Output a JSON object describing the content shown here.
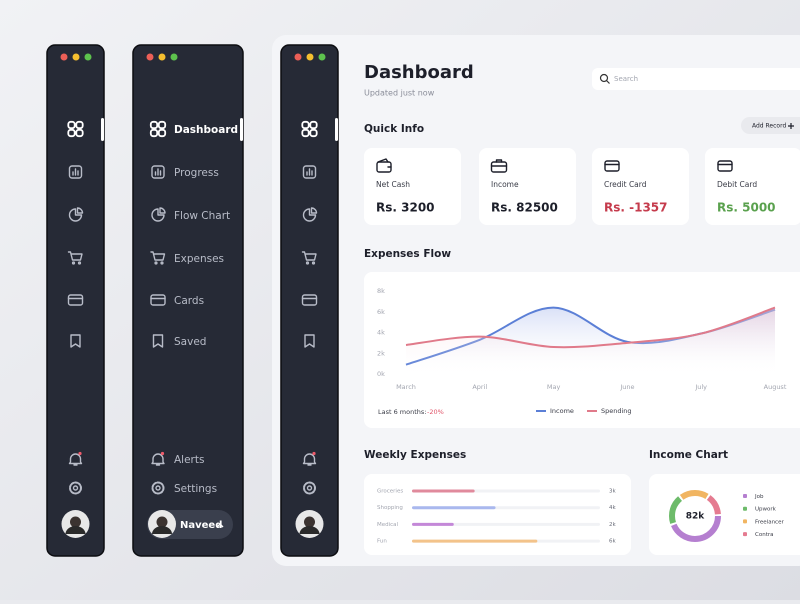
{
  "nav": {
    "items": [
      "Dashboard",
      "Progress",
      "Flow Chart",
      "Expenses",
      "Cards",
      "Saved"
    ],
    "bottom": [
      "Alerts",
      "Settings"
    ],
    "user": "Naveed"
  },
  "header": {
    "title": "Dashboard",
    "subtitle": "Updated just now",
    "search": "Search"
  },
  "quick_info": {
    "title": "Quick Info",
    "button": "Add Record",
    "cards": [
      {
        "label": "Net Cash",
        "value": "Rs. 3200"
      },
      {
        "label": "Income",
        "value": "Rs. 82500"
      },
      {
        "label": "Credit Card",
        "value": "Rs. -1357"
      },
      {
        "label": "Debit Card",
        "value": "Rs. 5000"
      }
    ]
  },
  "chart_data": [
    {
      "type": "line",
      "title": "Expenses Flow",
      "categories": [
        "March",
        "April",
        "May",
        "June",
        "July",
        "August"
      ],
      "series": [
        {
          "name": "Income",
          "color": "#5b7fd6",
          "values": [
            0.9,
            3.3,
            6.4,
            3.1,
            3.9,
            6.2
          ]
        },
        {
          "name": "Spending",
          "color": "#e07a8a",
          "values": [
            2.8,
            3.6,
            2.6,
            3.0,
            3.9,
            6.4
          ]
        }
      ],
      "ylim": [
        0,
        8
      ],
      "yticks": [
        {
          "value": 0,
          "label": "0k"
        },
        {
          "value": 2,
          "label": "2k"
        },
        {
          "value": 4,
          "label": "4k"
        },
        {
          "value": 6,
          "label": "6k"
        },
        {
          "value": 8,
          "label": "8k"
        }
      ],
      "footer": "Last 6 months:",
      "change": "-20%"
    },
    {
      "type": "hbar",
      "title": "Weekly Expenses",
      "categories": [
        "Groceries",
        "Shopping",
        "Medical",
        "Fun"
      ],
      "values": [
        3,
        4,
        2,
        6
      ],
      "value_labels": [
        "3k",
        "4k",
        "2k",
        "6k"
      ],
      "colors": [
        "#e08a9c",
        "#a9b8ee",
        "#c488d8",
        "#f3c38a"
      ],
      "xlim": [
        0,
        9
      ]
    },
    {
      "type": "donut",
      "title": "Income Chart",
      "center": "82k",
      "categories": [
        "Job",
        "Upwork",
        "Freelancer",
        "Contra"
      ],
      "values": [
        45,
        20,
        20,
        15
      ],
      "colors": [
        "#b57fd0",
        "#6dbb6a",
        "#f1b561",
        "#e57b90"
      ]
    }
  ]
}
